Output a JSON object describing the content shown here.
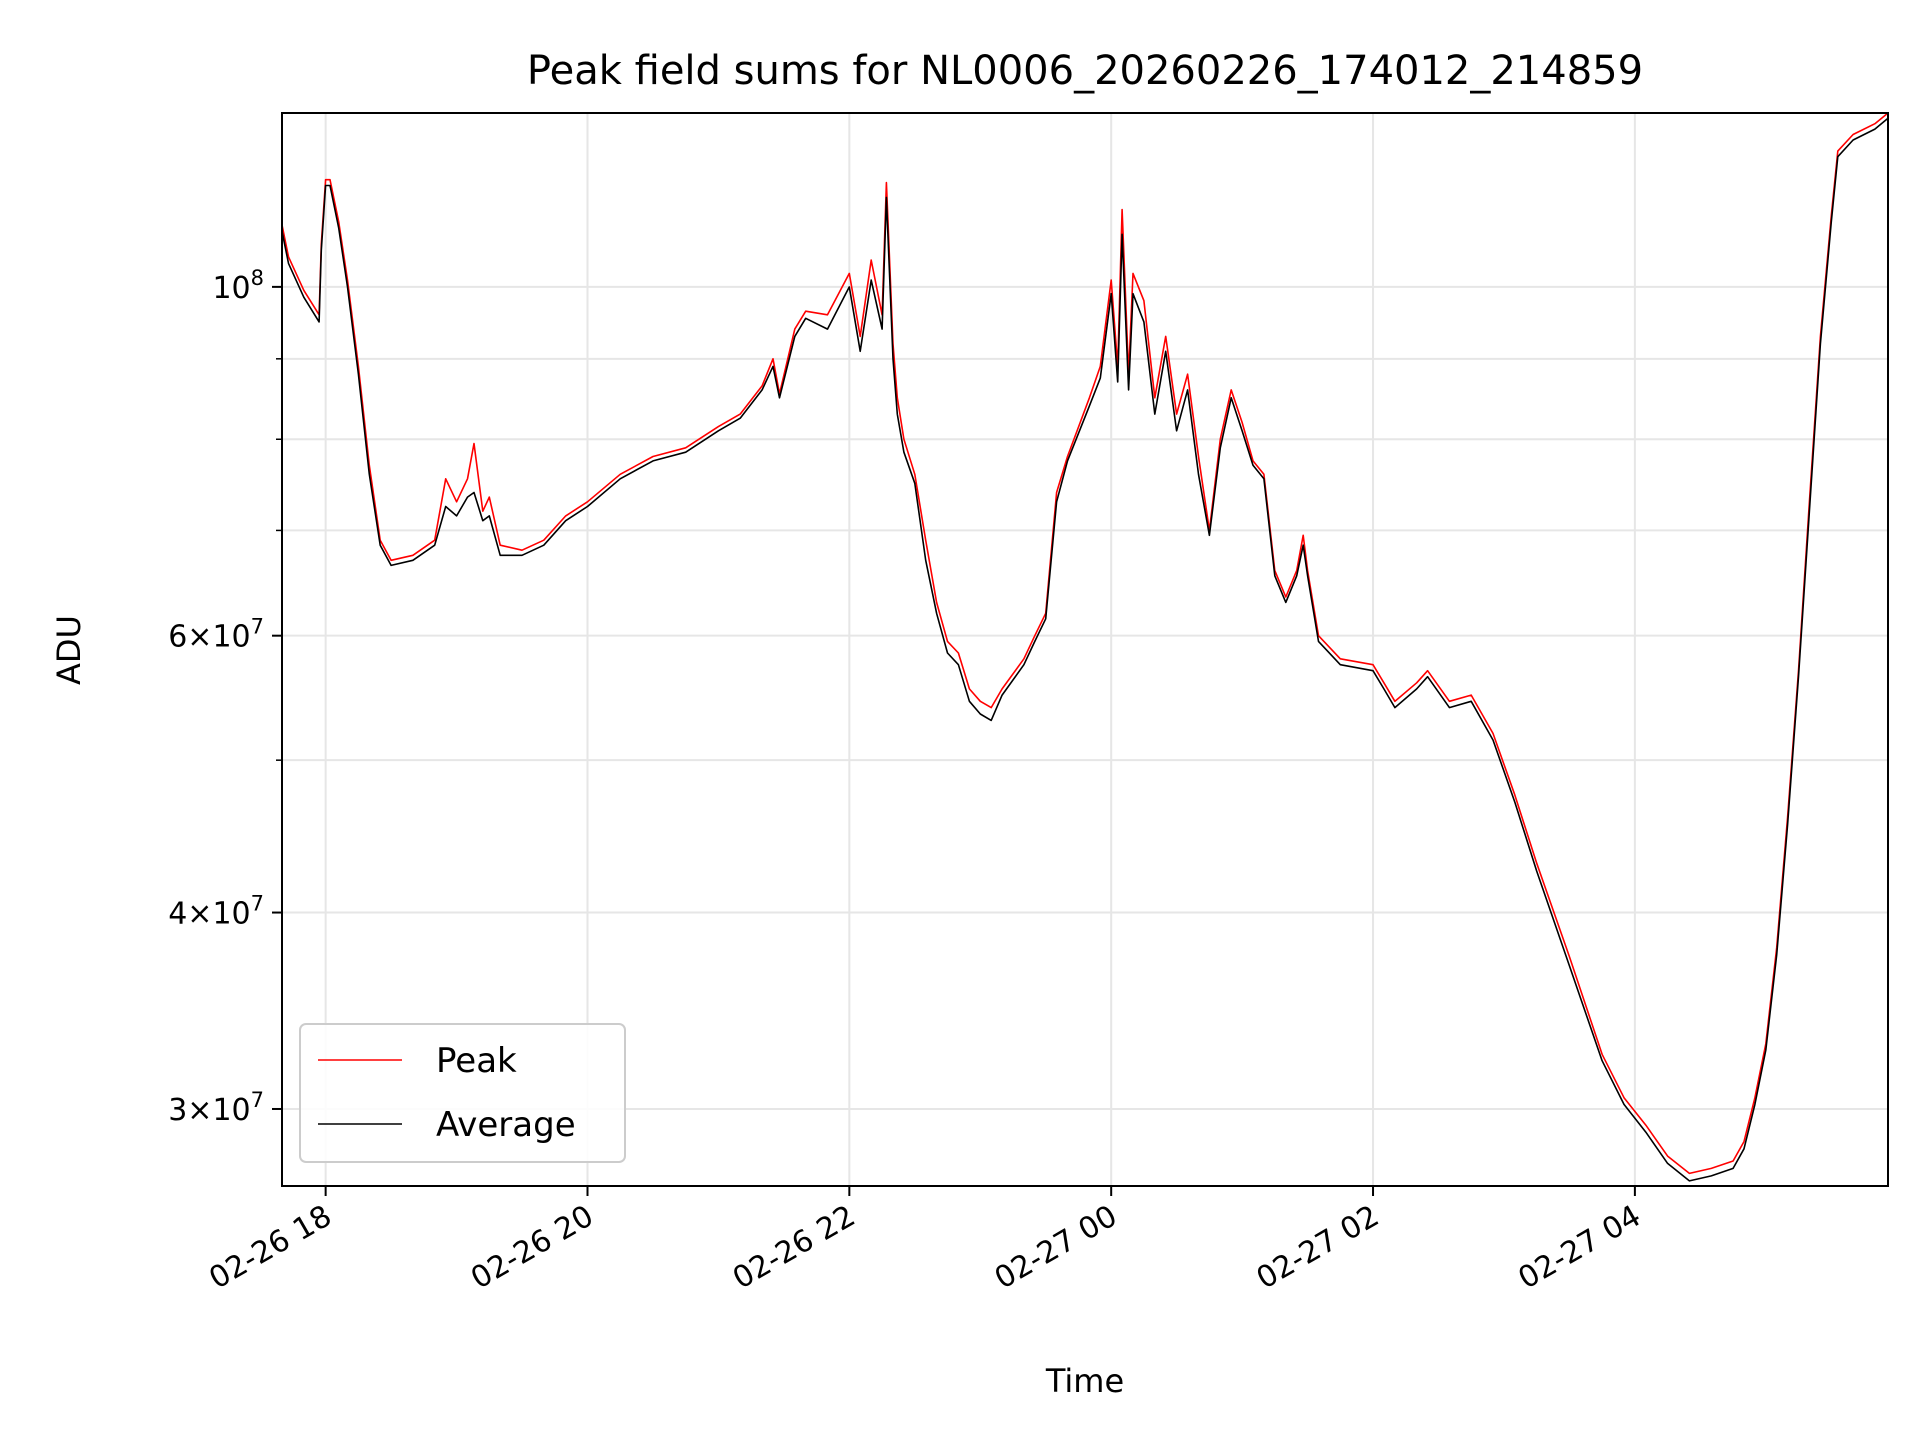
{
  "chart_data": {
    "type": "line",
    "title": "Peak field sums for NL0006_20260226_174012_214859",
    "xlabel": "Time",
    "ylabel": "ADU",
    "yscale": "log",
    "xlim": [
      "2026-02-26 17:40",
      "2026-02-27 05:56"
    ],
    "ylim": [
      26800000,
      129000000
    ],
    "grid": true,
    "legend_position": "lower-left",
    "x_ticks": [
      {
        "t": "2026-02-26 18:00",
        "label": "02-26 18"
      },
      {
        "t": "2026-02-26 20:00",
        "label": "02-26 20"
      },
      {
        "t": "2026-02-26 22:00",
        "label": "02-26 22"
      },
      {
        "t": "2026-02-27 00:00",
        "label": "02-27 00"
      },
      {
        "t": "2026-02-27 02:00",
        "label": "02-27 02"
      },
      {
        "t": "2026-02-27 04:00",
        "label": "02-27 04"
      }
    ],
    "y_major_ticks": [
      {
        "value": 100000000,
        "base": "10",
        "exp": "8",
        "mant": ""
      },
      {
        "value": 60000000,
        "base": "10",
        "exp": "7",
        "mant": "6"
      },
      {
        "value": 40000000,
        "base": "10",
        "exp": "7",
        "mant": "4"
      },
      {
        "value": 30000000,
        "base": "10",
        "exp": "7",
        "mant": "3"
      }
    ],
    "y_minor_grid": [
      50000000,
      70000000,
      80000000,
      90000000
    ],
    "series": [
      {
        "name": "Peak",
        "color": "#ff0000",
        "points": [
          [
            "2026-02-26 17:40",
            109500000
          ],
          [
            "2026-02-26 17:43",
            104500000
          ],
          [
            "2026-02-26 17:50",
            99500000
          ],
          [
            "2026-02-26 17:57",
            96000000
          ],
          [
            "2026-02-26 17:58",
            106500000
          ],
          [
            "2026-02-26 18:00",
            117000000
          ],
          [
            "2026-02-26 18:02",
            117000000
          ],
          [
            "2026-02-26 18:06",
            110000000
          ],
          [
            "2026-02-26 18:10",
            101000000
          ],
          [
            "2026-02-26 18:15",
            89000000
          ],
          [
            "2026-02-26 18:20",
            77000000
          ],
          [
            "2026-02-26 18:25",
            69000000
          ],
          [
            "2026-02-26 18:30",
            67000000
          ],
          [
            "2026-02-26 18:40",
            67500000
          ],
          [
            "2026-02-26 18:50",
            69000000
          ],
          [
            "2026-02-26 18:55",
            75500000
          ],
          [
            "2026-02-26 19:00",
            73000000
          ],
          [
            "2026-02-26 19:05",
            75500000
          ],
          [
            "2026-02-26 19:08",
            79500000
          ],
          [
            "2026-02-26 19:12",
            72000000
          ],
          [
            "2026-02-26 19:15",
            73500000
          ],
          [
            "2026-02-26 19:20",
            68500000
          ],
          [
            "2026-02-26 19:30",
            68000000
          ],
          [
            "2026-02-26 19:40",
            69000000
          ],
          [
            "2026-02-26 19:50",
            71500000
          ],
          [
            "2026-02-26 20:00",
            73000000
          ],
          [
            "2026-02-26 20:15",
            76000000
          ],
          [
            "2026-02-26 20:30",
            78000000
          ],
          [
            "2026-02-26 20:45",
            79000000
          ],
          [
            "2026-02-26 21:00",
            81500000
          ],
          [
            "2026-02-26 21:10",
            83000000
          ],
          [
            "2026-02-26 21:20",
            86500000
          ],
          [
            "2026-02-26 21:25",
            90000000
          ],
          [
            "2026-02-26 21:28",
            85500000
          ],
          [
            "2026-02-26 21:35",
            94000000
          ],
          [
            "2026-02-26 21:40",
            96500000
          ],
          [
            "2026-02-26 21:50",
            96000000
          ],
          [
            "2026-02-26 22:00",
            102000000
          ],
          [
            "2026-02-26 22:05",
            93000000
          ],
          [
            "2026-02-26 22:10",
            104000000
          ],
          [
            "2026-02-26 22:15",
            96000000
          ],
          [
            "2026-02-26 22:17",
            116500000
          ],
          [
            "2026-02-26 22:20",
            92000000
          ],
          [
            "2026-02-26 22:22",
            85000000
          ],
          [
            "2026-02-26 22:25",
            80000000
          ],
          [
            "2026-02-26 22:30",
            76000000
          ],
          [
            "2026-02-26 22:35",
            69000000
          ],
          [
            "2026-02-26 22:40",
            63000000
          ],
          [
            "2026-02-26 22:45",
            59500000
          ],
          [
            "2026-02-26 22:50",
            58500000
          ],
          [
            "2026-02-26 22:55",
            55500000
          ],
          [
            "2026-02-26 23:00",
            54500000
          ],
          [
            "2026-02-26 23:05",
            54000000
          ],
          [
            "2026-02-26 23:10",
            55500000
          ],
          [
            "2026-02-26 23:20",
            58000000
          ],
          [
            "2026-02-26 23:25",
            60000000
          ],
          [
            "2026-02-26 23:30",
            62000000
          ],
          [
            "2026-02-26 23:35",
            74000000
          ],
          [
            "2026-02-26 23:40",
            78000000
          ],
          [
            "2026-02-26 23:50",
            85000000
          ],
          [
            "2026-02-26 23:55",
            89000000
          ],
          [
            "2026-02-27 00:00",
            101000000
          ],
          [
            "2026-02-27 00:03",
            89000000
          ],
          [
            "2026-02-27 00:05",
            112000000
          ],
          [
            "2026-02-27 00:08",
            88000000
          ],
          [
            "2026-02-27 00:10",
            102000000
          ],
          [
            "2026-02-27 00:15",
            98000000
          ],
          [
            "2026-02-27 00:20",
            85000000
          ],
          [
            "2026-02-27 00:25",
            93000000
          ],
          [
            "2026-02-27 00:30",
            83000000
          ],
          [
            "2026-02-27 00:35",
            88000000
          ],
          [
            "2026-02-27 00:40",
            78000000
          ],
          [
            "2026-02-27 00:45",
            70000000
          ],
          [
            "2026-02-27 00:50",
            80000000
          ],
          [
            "2026-02-27 00:55",
            86000000
          ],
          [
            "2026-02-27 01:00",
            82000000
          ],
          [
            "2026-02-27 01:05",
            77500000
          ],
          [
            "2026-02-27 01:10",
            76000000
          ],
          [
            "2026-02-27 01:15",
            66000000
          ],
          [
            "2026-02-27 01:20",
            63500000
          ],
          [
            "2026-02-27 01:25",
            66000000
          ],
          [
            "2026-02-27 01:28",
            69500000
          ],
          [
            "2026-02-27 01:30",
            66000000
          ],
          [
            "2026-02-27 01:35",
            60000000
          ],
          [
            "2026-02-27 01:45",
            58000000
          ],
          [
            "2026-02-27 02:00",
            57500000
          ],
          [
            "2026-02-27 02:05",
            56000000
          ],
          [
            "2026-02-27 02:10",
            54500000
          ],
          [
            "2026-02-27 02:20",
            56000000
          ],
          [
            "2026-02-27 02:25",
            57000000
          ],
          [
            "2026-02-27 02:35",
            54500000
          ],
          [
            "2026-02-27 02:45",
            55000000
          ],
          [
            "2026-02-27 02:55",
            52000000
          ],
          [
            "2026-02-27 03:05",
            47500000
          ],
          [
            "2026-02-27 03:15",
            43000000
          ],
          [
            "2026-02-27 03:30",
            37500000
          ],
          [
            "2026-02-27 03:45",
            32500000
          ],
          [
            "2026-02-27 03:55",
            30500000
          ],
          [
            "2026-02-27 04:05",
            29300000
          ],
          [
            "2026-02-27 04:15",
            28000000
          ],
          [
            "2026-02-27 04:25",
            27300000
          ],
          [
            "2026-02-27 04:35",
            27500000
          ],
          [
            "2026-02-27 04:45",
            27800000
          ],
          [
            "2026-02-27 04:50",
            28600000
          ],
          [
            "2026-02-27 04:55",
            30500000
          ],
          [
            "2026-02-27 05:00",
            33000000
          ],
          [
            "2026-02-27 05:05",
            38000000
          ],
          [
            "2026-02-27 05:10",
            46000000
          ],
          [
            "2026-02-27 05:15",
            57000000
          ],
          [
            "2026-02-27 05:20",
            73000000
          ],
          [
            "2026-02-27 05:25",
            93000000
          ],
          [
            "2026-02-27 05:30",
            111000000
          ],
          [
            "2026-02-27 05:33",
            122000000
          ],
          [
            "2026-02-27 05:40",
            125000000
          ],
          [
            "2026-02-27 05:50",
            127000000
          ],
          [
            "2026-02-27 05:56",
            129000000
          ]
        ]
      },
      {
        "name": "Average",
        "color": "#000000",
        "points": [
          [
            "2026-02-26 17:40",
            108500000
          ],
          [
            "2026-02-26 17:43",
            103500000
          ],
          [
            "2026-02-26 17:50",
            98500000
          ],
          [
            "2026-02-26 17:57",
            95000000
          ],
          [
            "2026-02-26 17:58",
            105500000
          ],
          [
            "2026-02-26 18:00",
            116000000
          ],
          [
            "2026-02-26 18:02",
            116000000
          ],
          [
            "2026-02-26 18:06",
            109000000
          ],
          [
            "2026-02-26 18:10",
            100000000
          ],
          [
            "2026-02-26 18:15",
            88000000
          ],
          [
            "2026-02-26 18:20",
            76000000
          ],
          [
            "2026-02-26 18:25",
            68500000
          ],
          [
            "2026-02-26 18:30",
            66500000
          ],
          [
            "2026-02-26 18:40",
            67000000
          ],
          [
            "2026-02-26 18:50",
            68500000
          ],
          [
            "2026-02-26 18:55",
            72500000
          ],
          [
            "2026-02-26 19:00",
            71500000
          ],
          [
            "2026-02-26 19:05",
            73500000
          ],
          [
            "2026-02-26 19:08",
            74000000
          ],
          [
            "2026-02-26 19:12",
            71000000
          ],
          [
            "2026-02-26 19:15",
            71500000
          ],
          [
            "2026-02-26 19:20",
            67500000
          ],
          [
            "2026-02-26 19:30",
            67500000
          ],
          [
            "2026-02-26 19:40",
            68500000
          ],
          [
            "2026-02-26 19:50",
            71000000
          ],
          [
            "2026-02-26 20:00",
            72500000
          ],
          [
            "2026-02-26 20:15",
            75500000
          ],
          [
            "2026-02-26 20:30",
            77500000
          ],
          [
            "2026-02-26 20:45",
            78500000
          ],
          [
            "2026-02-26 21:00",
            81000000
          ],
          [
            "2026-02-26 21:10",
            82500000
          ],
          [
            "2026-02-26 21:20",
            86000000
          ],
          [
            "2026-02-26 21:25",
            89000000
          ],
          [
            "2026-02-26 21:28",
            85000000
          ],
          [
            "2026-02-26 21:35",
            93000000
          ],
          [
            "2026-02-26 21:40",
            95500000
          ],
          [
            "2026-02-26 21:50",
            94000000
          ],
          [
            "2026-02-26 22:00",
            100000000
          ],
          [
            "2026-02-26 22:05",
            91000000
          ],
          [
            "2026-02-26 22:10",
            101000000
          ],
          [
            "2026-02-26 22:15",
            94000000
          ],
          [
            "2026-02-26 22:17",
            114000000
          ],
          [
            "2026-02-26 22:20",
            90000000
          ],
          [
            "2026-02-26 22:22",
            83000000
          ],
          [
            "2026-02-26 22:25",
            78500000
          ],
          [
            "2026-02-26 22:30",
            75000000
          ],
          [
            "2026-02-26 22:35",
            67000000
          ],
          [
            "2026-02-26 22:40",
            62000000
          ],
          [
            "2026-02-26 22:45",
            58500000
          ],
          [
            "2026-02-26 22:50",
            57500000
          ],
          [
            "2026-02-26 22:55",
            54500000
          ],
          [
            "2026-02-26 23:00",
            53500000
          ],
          [
            "2026-02-26 23:05",
            53000000
          ],
          [
            "2026-02-26 23:10",
            55000000
          ],
          [
            "2026-02-26 23:20",
            57500000
          ],
          [
            "2026-02-26 23:25",
            59500000
          ],
          [
            "2026-02-26 23:30",
            61500000
          ],
          [
            "2026-02-26 23:35",
            73000000
          ],
          [
            "2026-02-26 23:40",
            77500000
          ],
          [
            "2026-02-26 23:50",
            84000000
          ],
          [
            "2026-02-26 23:55",
            87500000
          ],
          [
            "2026-02-27 00:00",
            99000000
          ],
          [
            "2026-02-27 00:03",
            87000000
          ],
          [
            "2026-02-27 00:05",
            108000000
          ],
          [
            "2026-02-27 00:08",
            86000000
          ],
          [
            "2026-02-27 00:10",
            99000000
          ],
          [
            "2026-02-27 00:15",
            95000000
          ],
          [
            "2026-02-27 00:20",
            83000000
          ],
          [
            "2026-02-27 00:25",
            91000000
          ],
          [
            "2026-02-27 00:30",
            81000000
          ],
          [
            "2026-02-27 00:35",
            86000000
          ],
          [
            "2026-02-27 00:40",
            76000000
          ],
          [
            "2026-02-27 00:45",
            69500000
          ],
          [
            "2026-02-27 00:50",
            79000000
          ],
          [
            "2026-02-27 00:55",
            85000000
          ],
          [
            "2026-02-27 01:00",
            81000000
          ],
          [
            "2026-02-27 01:05",
            77000000
          ],
          [
            "2026-02-27 01:10",
            75500000
          ],
          [
            "2026-02-27 01:15",
            65500000
          ],
          [
            "2026-02-27 01:20",
            63000000
          ],
          [
            "2026-02-27 01:25",
            65500000
          ],
          [
            "2026-02-27 01:28",
            68500000
          ],
          [
            "2026-02-27 01:30",
            65500000
          ],
          [
            "2026-02-27 01:35",
            59500000
          ],
          [
            "2026-02-27 01:45",
            57500000
          ],
          [
            "2026-02-27 02:00",
            57000000
          ],
          [
            "2026-02-27 02:05",
            55500000
          ],
          [
            "2026-02-27 02:10",
            54000000
          ],
          [
            "2026-02-27 02:20",
            55500000
          ],
          [
            "2026-02-27 02:25",
            56500000
          ],
          [
            "2026-02-27 02:35",
            54000000
          ],
          [
            "2026-02-27 02:45",
            54500000
          ],
          [
            "2026-02-27 02:55",
            51500000
          ],
          [
            "2026-02-27 03:05",
            47000000
          ],
          [
            "2026-02-27 03:15",
            42500000
          ],
          [
            "2026-02-27 03:30",
            37000000
          ],
          [
            "2026-02-27 03:45",
            32200000
          ],
          [
            "2026-02-27 03:55",
            30200000
          ],
          [
            "2026-02-27 04:05",
            29000000
          ],
          [
            "2026-02-27 04:15",
            27700000
          ],
          [
            "2026-02-27 04:25",
            27000000
          ],
          [
            "2026-02-27 04:35",
            27200000
          ],
          [
            "2026-02-27 04:45",
            27500000
          ],
          [
            "2026-02-27 04:50",
            28300000
          ],
          [
            "2026-02-27 04:55",
            30200000
          ],
          [
            "2026-02-27 05:00",
            32700000
          ],
          [
            "2026-02-27 05:05",
            37600000
          ],
          [
            "2026-02-27 05:10",
            45500000
          ],
          [
            "2026-02-27 05:15",
            56500000
          ],
          [
            "2026-02-27 05:20",
            72000000
          ],
          [
            "2026-02-27 05:25",
            92000000
          ],
          [
            "2026-02-27 05:30",
            110000000
          ],
          [
            "2026-02-27 05:33",
            121000000
          ],
          [
            "2026-02-27 05:40",
            124000000
          ],
          [
            "2026-02-27 05:50",
            126000000
          ],
          [
            "2026-02-27 05:56",
            128000000
          ]
        ]
      }
    ]
  }
}
